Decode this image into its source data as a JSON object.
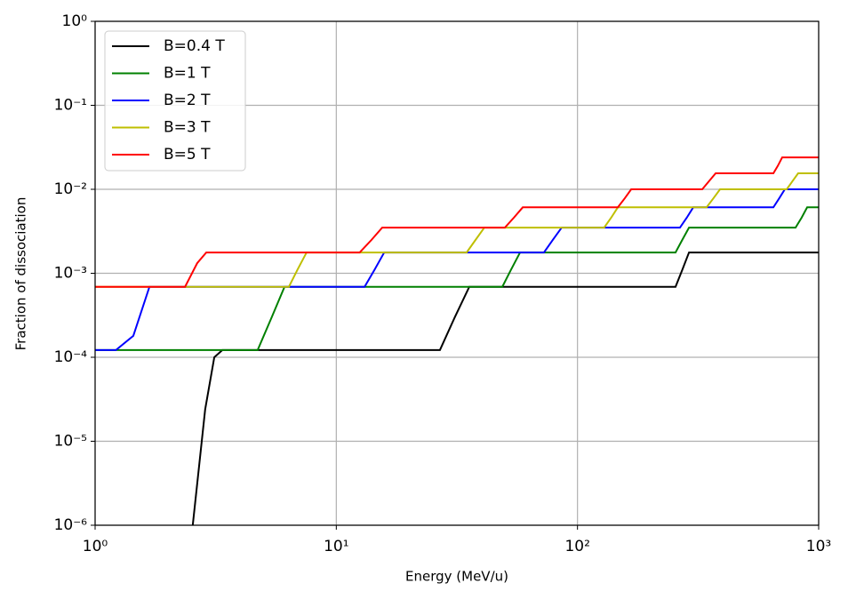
{
  "chart_data": {
    "type": "line",
    "xlabel": "Energy (MeV/u)",
    "ylabel": "Fraction of dissociation",
    "xscale": "log",
    "yscale": "log",
    "grid": true,
    "legend": "upper left",
    "xlim": [
      1,
      1000
    ],
    "ylim": [
      1e-06,
      1
    ],
    "xticks": [
      {
        "value": 1,
        "label": "10⁰"
      },
      {
        "value": 10,
        "label": "10¹"
      },
      {
        "value": 100,
        "label": "10²"
      },
      {
        "value": 1000,
        "label": "10³"
      }
    ],
    "yticks": [
      {
        "value": 1,
        "label": "10⁰"
      },
      {
        "value": 0.1,
        "label": "10⁻¹"
      },
      {
        "value": 0.01,
        "label": "10⁻²"
      },
      {
        "value": 0.001,
        "label": "10⁻³"
      },
      {
        "value": 0.0001,
        "label": "10⁻⁴"
      },
      {
        "value": 1e-05,
        "label": "10⁻⁵"
      },
      {
        "value": 1e-06,
        "label": "10⁻⁶"
      }
    ],
    "series": [
      {
        "name": "B=0.4 T",
        "color": "#000000",
        "x": [
          2.54,
          2.86,
          3.12,
          3.37,
          26.9,
          31,
          35.6,
          255,
          272,
          290,
          1000
        ],
        "values": [
          1e-06,
          2.4e-05,
          0.0001,
          0.000122,
          0.000122,
          0.0003,
          0.00069,
          0.00069,
          0.0011,
          0.00177,
          0.00177
        ]
      },
      {
        "name": "B=1 T",
        "color": "#008000",
        "x": [
          1,
          4.72,
          5.4,
          6.1,
          48.8,
          53,
          57.8,
          255,
          272,
          290,
          802,
          850,
          896,
          1000
        ],
        "values": [
          0.000122,
          0.000122,
          0.0003,
          0.00069,
          0.00069,
          0.0011,
          0.00177,
          0.00177,
          0.0025,
          0.0035,
          0.0035,
          0.0046,
          0.0061,
          0.0061
        ]
      },
      {
        "name": "B=2 T",
        "color": "#0000ff",
        "x": [
          1,
          1.22,
          1.44,
          1.68,
          13.1,
          14.4,
          15.8,
          72.6,
          79,
          86,
          266,
          284,
          302,
          649,
          686,
          724,
          1000
        ],
        "values": [
          0.000122,
          0.000122,
          0.00018,
          0.00069,
          0.00069,
          0.0011,
          0.00177,
          0.00177,
          0.0025,
          0.0035,
          0.0035,
          0.0046,
          0.0061,
          0.0061,
          0.0078,
          0.01,
          0.01
        ]
      },
      {
        "name": "B=3 T",
        "color": "#bfbf00",
        "x": [
          1,
          6.36,
          6.9,
          7.53,
          34.7,
          37.8,
          41.1,
          129,
          138,
          147,
          343,
          366,
          390,
          737,
          779,
          822,
          1000
        ],
        "values": [
          0.00069,
          0.00069,
          0.0011,
          0.00177,
          0.00177,
          0.0025,
          0.0035,
          0.0035,
          0.0046,
          0.0061,
          0.0061,
          0.0078,
          0.01,
          0.01,
          0.0125,
          0.0155,
          0.0155
        ]
      },
      {
        "name": "B=5 T",
        "color": "#ff0000",
        "x": [
          1,
          2.36,
          2.65,
          2.89,
          12.5,
          14,
          15.5,
          50,
          54.5,
          59.3,
          147,
          157,
          167,
          329,
          351,
          374,
          649,
          677,
          706,
          1000
        ],
        "values": [
          0.00069,
          0.00069,
          0.00132,
          0.00177,
          0.00177,
          0.0025,
          0.0035,
          0.0035,
          0.0046,
          0.0061,
          0.0061,
          0.0078,
          0.01,
          0.01,
          0.0125,
          0.0155,
          0.0155,
          0.019,
          0.024,
          0.024
        ]
      }
    ]
  }
}
